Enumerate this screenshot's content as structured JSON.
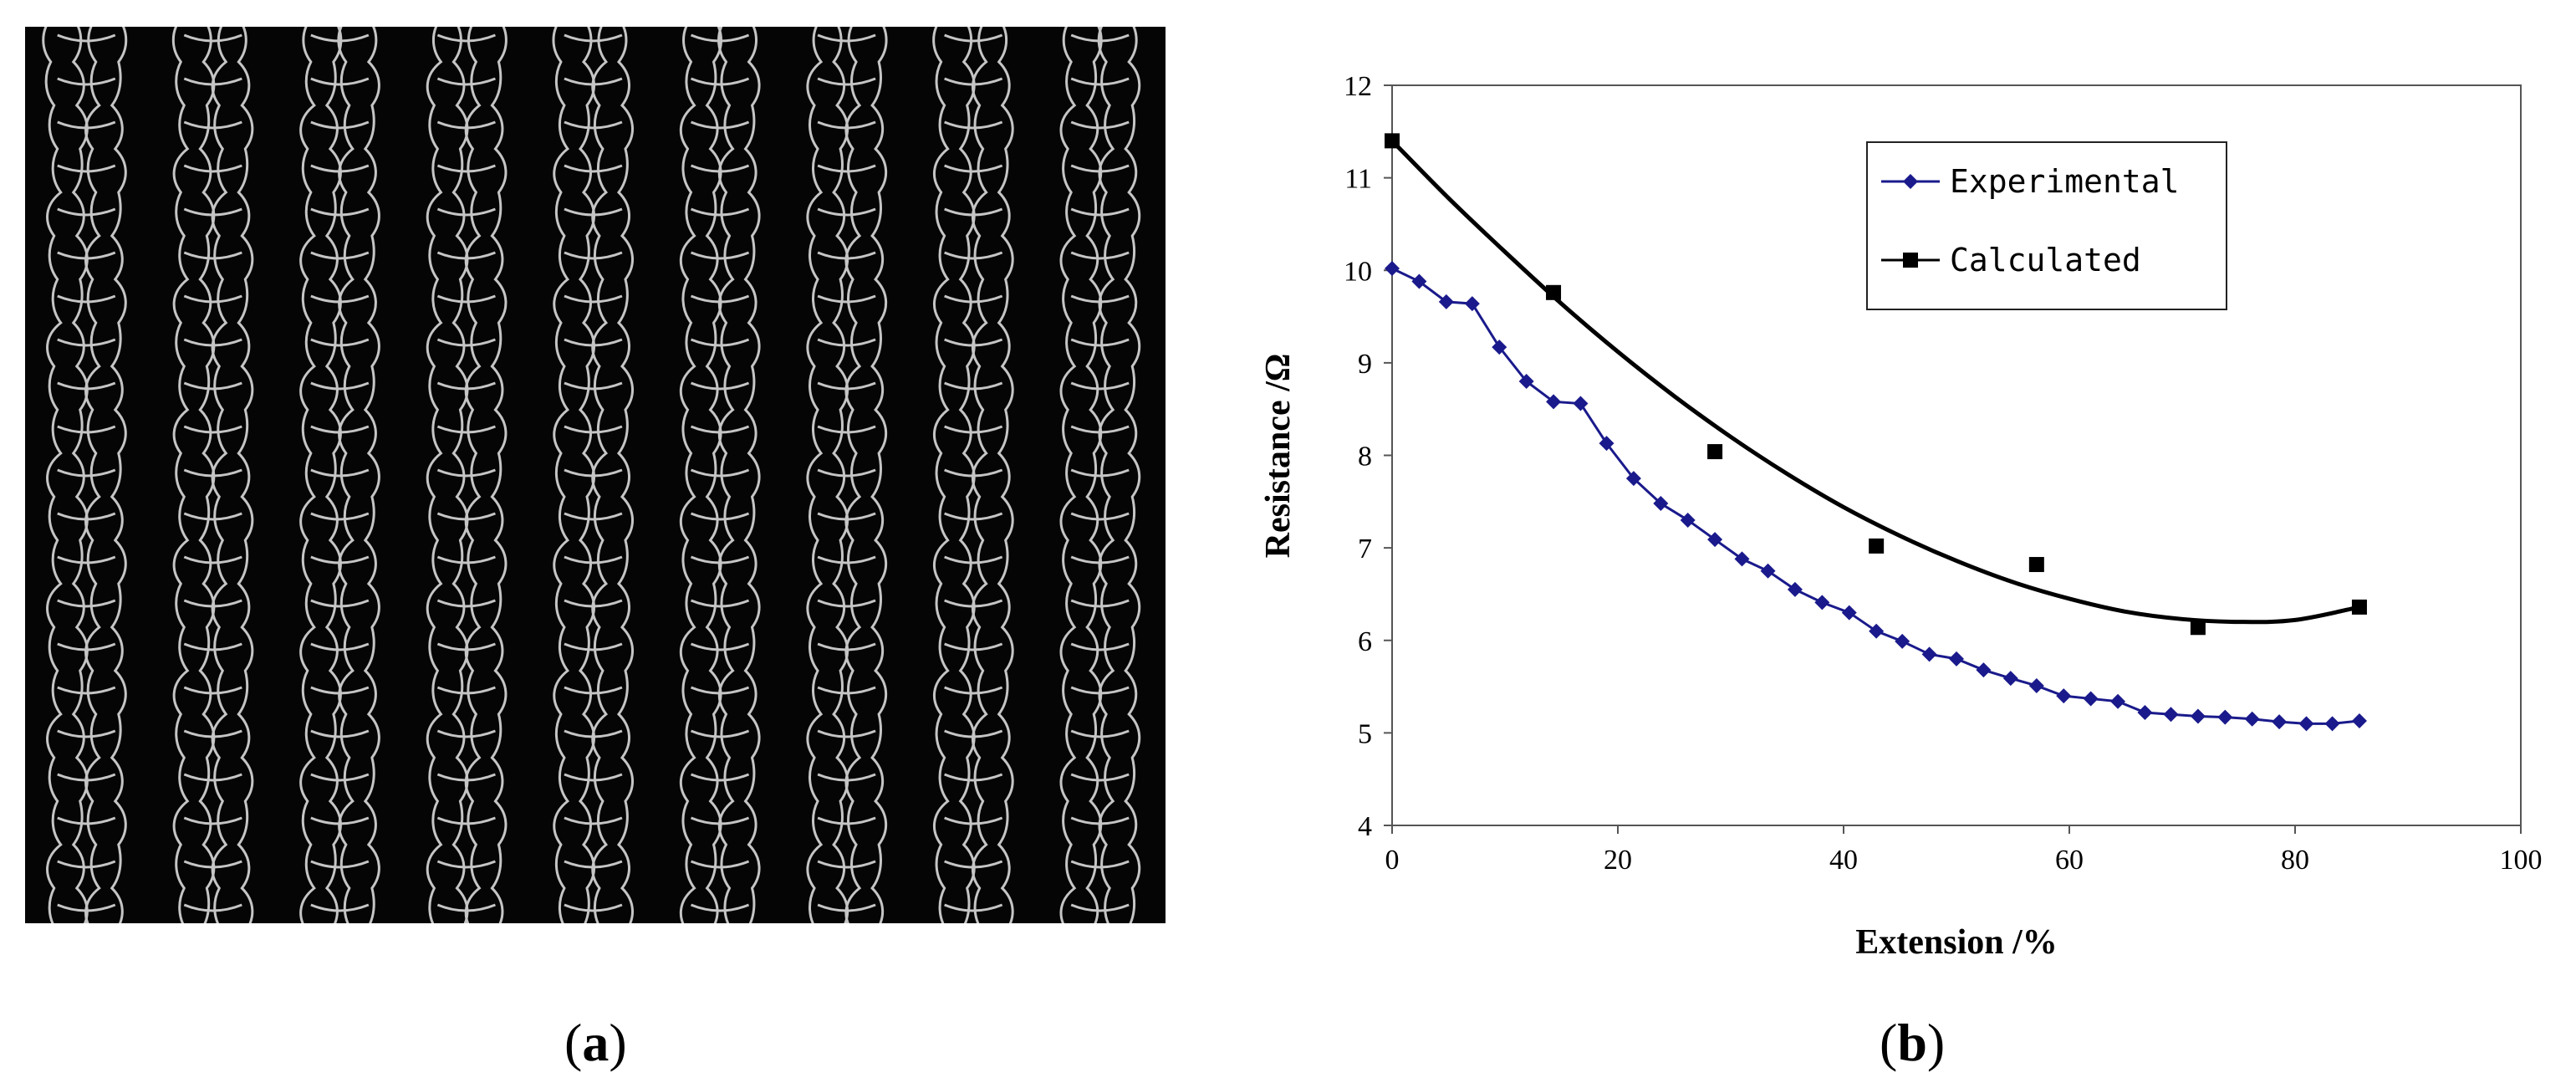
{
  "figure": {
    "panel_a_caption": "a",
    "panel_b_caption": "b"
  },
  "photo": {
    "columns": 9
  },
  "chart_data": {
    "type": "line",
    "xlabel": "Extension /%",
    "ylabel": "Resistance /Ω",
    "xlim": [
      0,
      100
    ],
    "ylim": [
      4,
      12
    ],
    "xticks": [
      0,
      20,
      40,
      60,
      80,
      100
    ],
    "yticks": [
      4,
      5,
      6,
      7,
      8,
      9,
      10,
      11,
      12
    ],
    "grid": false,
    "legend_position": "top-right",
    "series": [
      {
        "name": "Experimental",
        "color": "#1a1a8c",
        "marker": "diamond",
        "x": [
          0,
          2.4,
          4.8,
          7.1,
          9.5,
          11.9,
          14.3,
          16.7,
          19,
          21.4,
          23.8,
          26.2,
          28.6,
          31,
          33.3,
          35.7,
          38.1,
          40.5,
          42.9,
          45.2,
          47.6,
          50,
          52.4,
          54.8,
          57.1,
          59.5,
          61.9,
          64.3,
          66.7,
          69,
          71.4,
          73.8,
          76.2,
          78.6,
          81,
          83.3,
          85.7
        ],
        "y": [
          10.02,
          9.88,
          9.66,
          9.64,
          9.17,
          8.8,
          8.58,
          8.56,
          8.13,
          7.75,
          7.48,
          7.3,
          7.09,
          6.88,
          6.75,
          6.55,
          6.41,
          6.3,
          6.1,
          5.99,
          5.85,
          5.8,
          5.68,
          5.59,
          5.51,
          5.4,
          5.37,
          5.34,
          5.22,
          5.2,
          5.18,
          5.17,
          5.15,
          5.12,
          5.1,
          5.1,
          5.13
        ]
      },
      {
        "name": "Calculated",
        "color": "#000000",
        "marker": "square",
        "x": [
          0,
          14.3,
          28.6,
          42.9,
          57.1,
          71.4,
          85.7
        ],
        "y": [
          11.4,
          9.76,
          8.04,
          7.02,
          6.82,
          6.14,
          6.36
        ]
      }
    ],
    "trend_curve": {
      "name": "Calculated",
      "color": "#000000",
      "x": [
        0,
        5,
        10,
        15,
        20,
        25,
        30,
        35,
        40,
        45,
        50,
        55,
        60,
        65,
        70,
        75,
        80,
        85.7
      ],
      "y": [
        11.4,
        10.78,
        10.2,
        9.64,
        9.12,
        8.64,
        8.2,
        7.8,
        7.44,
        7.13,
        6.86,
        6.63,
        6.45,
        6.31,
        6.23,
        6.2,
        6.22,
        6.36
      ]
    }
  }
}
